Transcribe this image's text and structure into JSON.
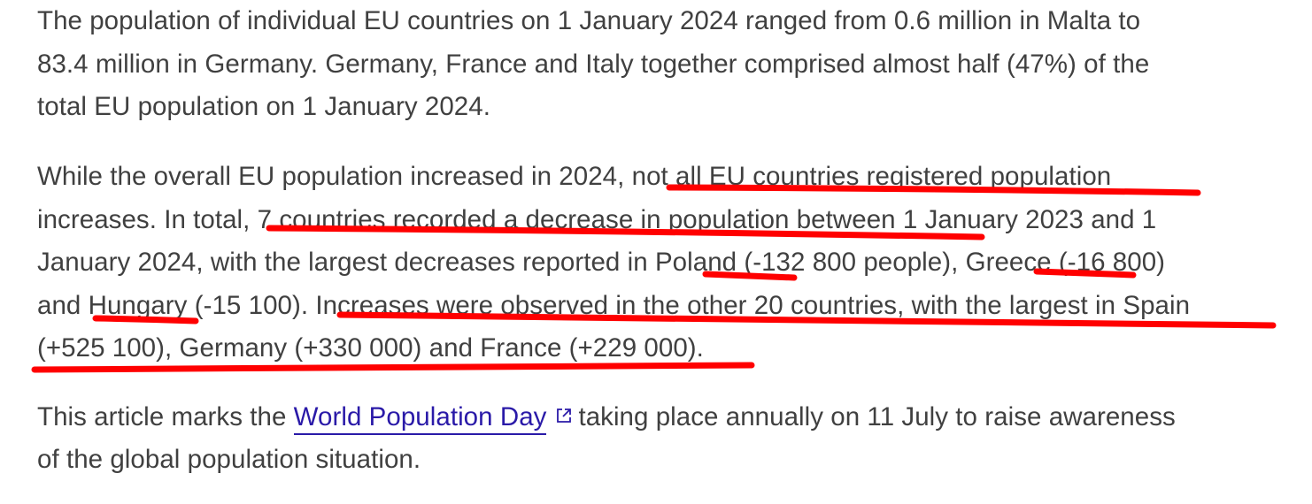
{
  "article": {
    "p1": {
      "l1": "The population of individual EU countries on 1 January 2024 ranged from 0.6 million in Malta to",
      "l2": "83.4 million in Germany. Germany, France and Italy together comprised almost half (47%) of the",
      "l3": "total EU population on 1 January 2024."
    },
    "p2": {
      "l1a": "While the overall EU population increased in 2024",
      "l1b": ", not all EU countries registered population",
      "l2a": "increases. In total",
      "l2b": ", 7 countries recorded a decrease in population between 1",
      "l2c": " January 2023 and 1",
      "l3a": "January 2024, with the largest decreases reported in ",
      "l3b": "Poland",
      "l3c": " (-132 800 people), ",
      "l3d": "Greece",
      "l3e": " (-16 800)",
      "l4a": "and ",
      "l4b": "Hungary",
      "l4c": " (-15 100). ",
      "l4d": "Increases were observed in the other 20 countries, with the largest in Spain",
      "l5a": "(+525 100), Germany (+330 000) and France (+229 000)",
      "l5b": "."
    },
    "p3": {
      "l1a": "This article marks the ",
      "link": "World Population Day",
      "icon": "external-link-icon",
      "l1b": "taking place annually on 11 July to raise awareness",
      "l2": "of the global population situation."
    }
  },
  "colors": {
    "text": "#404040",
    "link": "#2a1aa8",
    "annotation": "#ff0000"
  }
}
